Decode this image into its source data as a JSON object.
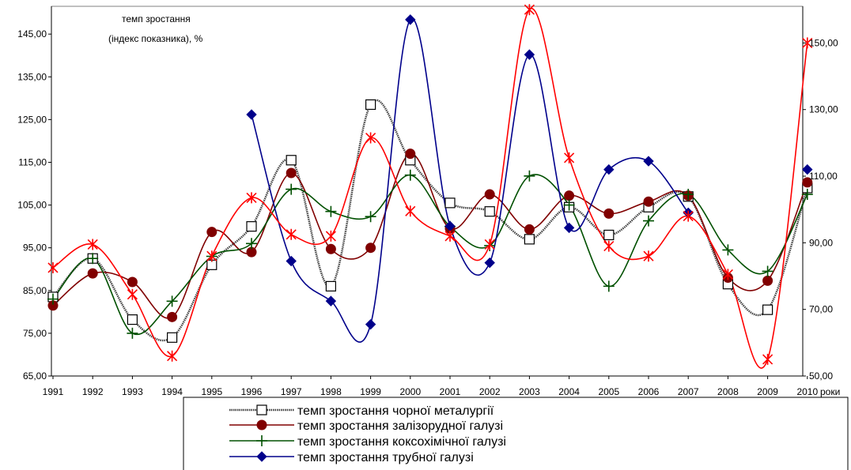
{
  "chart_data": {
    "type": "line",
    "annotation_line1": "темп зростання",
    "annotation_line2": "(індекс показника), %",
    "x_unit": "роки",
    "x": [
      "1991",
      "1992",
      "1993",
      "1994",
      "1995",
      "1996",
      "1997",
      "1998",
      "1999",
      "2000",
      "2001",
      "2002",
      "2003",
      "2004",
      "2005",
      "2006",
      "2007",
      "2008",
      "2009",
      "2010"
    ],
    "y_left": {
      "ticks": [
        "65,00",
        "75,00",
        "85,00",
        "95,00",
        "105,00",
        "115,00",
        "125,00",
        "135,00",
        "145,00"
      ],
      "range": [
        65,
        151.5
      ]
    },
    "y_right": {
      "ticks": [
        "50,00",
        "70,00",
        "90,00",
        "110,00",
        "130,00",
        "150,00"
      ],
      "range": [
        50,
        161
      ]
    },
    "grid": true,
    "legend_position": "bottom",
    "series": [
      {
        "name": "темп зростання чорної металургії",
        "axis": "left",
        "color": "#404040",
        "marker": "square",
        "values": [
          83.5,
          92.5,
          78.2,
          74.0,
          91.0,
          100.0,
          115.5,
          86.0,
          128.5,
          115.5,
          105.5,
          103.5,
          97.0,
          104.5,
          98.0,
          104.5,
          107.0,
          86.5,
          80.5,
          109.0
        ]
      },
      {
        "name": "темп зростання залізорудної галузі",
        "axis": "left",
        "color": "#800000",
        "marker": "circle",
        "values": [
          81.5,
          89.0,
          87.0,
          78.8,
          98.7,
          94.0,
          112.5,
          94.7,
          95.0,
          117.0,
          99.5,
          107.5,
          99.3,
          107.2,
          103.0,
          105.8,
          107.2,
          88.0,
          87.3,
          110.3
        ]
      },
      {
        "name": "темп зростання коксохімічної галузі",
        "axis": "left",
        "color": "#005000",
        "marker": "plus",
        "values": [
          83.0,
          92.5,
          75.0,
          82.5,
          93.0,
          96.0,
          108.7,
          103.5,
          102.3,
          112.0,
          100.0,
          95.5,
          111.8,
          105.0,
          86.0,
          101.3,
          107.5,
          94.5,
          89.5,
          107.5
        ]
      },
      {
        "name": "темп зростання трубної галузі",
        "axis": "right",
        "color": "#00008b",
        "marker": "diamond",
        "values": [
          null,
          null,
          null,
          null,
          null,
          128.5,
          84.5,
          72.5,
          65.5,
          157.0,
          95.0,
          84.0,
          146.5,
          94.5,
          112.0,
          114.5,
          99.0,
          null,
          null,
          112.0
        ]
      },
      {
        "name": "",
        "axis": "right",
        "color": "#ff0000",
        "marker": "x",
        "values": [
          82.5,
          89.5,
          74.5,
          56.0,
          86.0,
          103.5,
          92.5,
          92.0,
          121.5,
          99.5,
          92.0,
          89.5,
          160.0,
          115.5,
          89.0,
          86.0,
          98.0,
          80.5,
          55.0,
          150.0
        ]
      }
    ]
  }
}
